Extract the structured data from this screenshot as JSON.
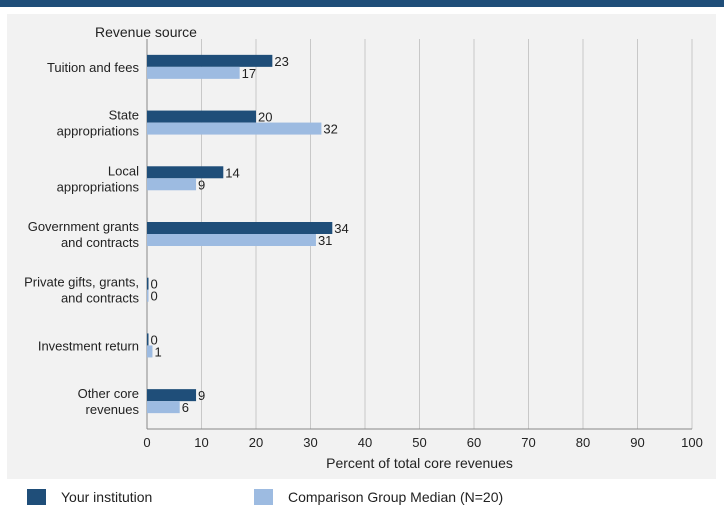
{
  "colors": {
    "header_bar": "#1f4e79",
    "panel_bg": "#f2f2f2",
    "series_institution": "#1f4e79",
    "series_comparison": "#9dbbe1",
    "grid": "#c8c8c8"
  },
  "chart_data": {
    "type": "bar",
    "orientation": "horizontal",
    "category_axis_title": "Revenue source",
    "xlabel": "Percent of total core revenues",
    "xlim": [
      0,
      100
    ],
    "xticks": [
      0,
      10,
      20,
      30,
      40,
      50,
      60,
      70,
      80,
      90,
      100
    ],
    "grid": "vertical",
    "legend_position": "bottom",
    "categories": [
      [
        "Tuition and fees"
      ],
      [
        "State",
        "appropriations"
      ],
      [
        "Local",
        "appropriations"
      ],
      [
        "Government grants",
        "and contracts"
      ],
      [
        "Private gifts, grants,",
        "and contracts"
      ],
      [
        "Investment return"
      ],
      [
        "Other core",
        "revenues"
      ]
    ],
    "series": [
      {
        "name": "Your institution",
        "color": "#1f4e79",
        "values": [
          23,
          20,
          14,
          34,
          0,
          0,
          9
        ]
      },
      {
        "name": "Comparison Group Median (N=20)",
        "color": "#9dbbe1",
        "values": [
          17,
          32,
          9,
          31,
          0,
          1,
          6
        ]
      }
    ]
  }
}
